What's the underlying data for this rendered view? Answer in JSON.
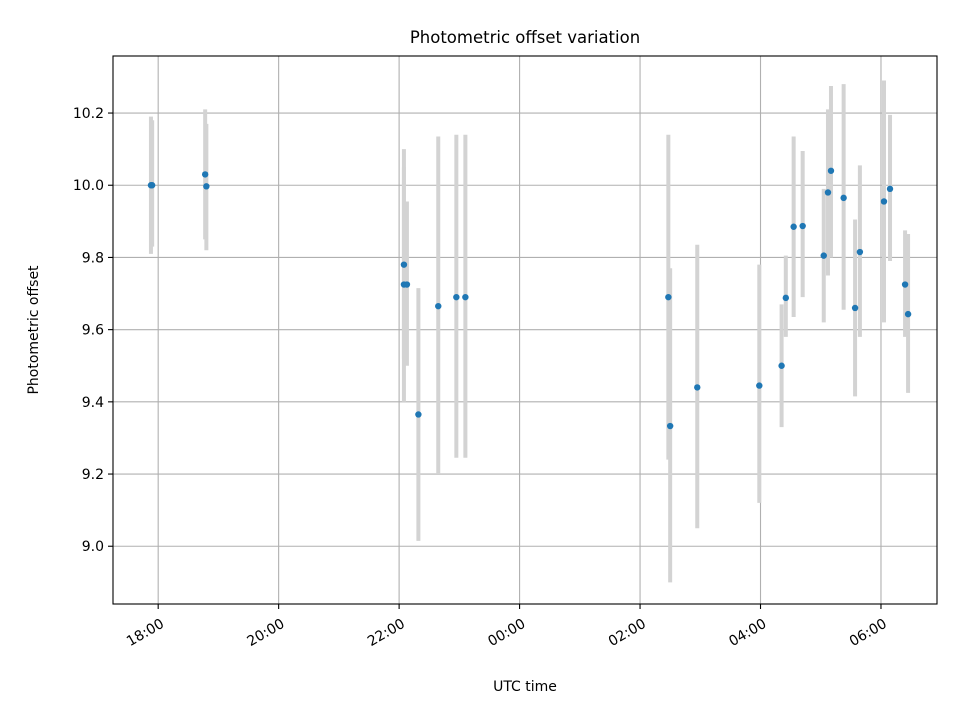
{
  "chart_data": {
    "type": "scatter",
    "title": "Photometric offset variation",
    "xlabel": "UTC time",
    "ylabel": "Photometric offset",
    "grid": true,
    "x_unit": "hours since 18:00",
    "xlim": [
      -0.75,
      12.93
    ],
    "ylim": [
      8.84,
      10.358
    ],
    "x_ticks": [
      {
        "value": 0,
        "label": "18:00"
      },
      {
        "value": 2,
        "label": "20:00"
      },
      {
        "value": 4,
        "label": "22:00"
      },
      {
        "value": 6,
        "label": "00:00"
      },
      {
        "value": 8,
        "label": "02:00"
      },
      {
        "value": 10,
        "label": "04:00"
      },
      {
        "value": 12,
        "label": "06:00"
      }
    ],
    "y_ticks": [
      {
        "value": 9.0,
        "label": "9.0"
      },
      {
        "value": 9.2,
        "label": "9.2"
      },
      {
        "value": 9.4,
        "label": "9.4"
      },
      {
        "value": 9.6,
        "label": "9.6"
      },
      {
        "value": 9.8,
        "label": "9.8"
      },
      {
        "value": 10.0,
        "label": "10.0"
      },
      {
        "value": 10.2,
        "label": "10.2"
      }
    ],
    "marker_color": "#1f77b4",
    "errorbar_color": "#d3d3d3",
    "points": [
      {
        "x": -0.12,
        "y": 10.0,
        "lo": 9.81,
        "hi": 10.19
      },
      {
        "x": -0.1,
        "y": 10.0,
        "lo": 9.83,
        "hi": 10.18
      },
      {
        "x": 0.78,
        "y": 10.03,
        "lo": 9.85,
        "hi": 10.21
      },
      {
        "x": 0.8,
        "y": 9.997,
        "lo": 9.82,
        "hi": 10.17
      },
      {
        "x": 4.08,
        "y": 9.78,
        "lo": 9.52,
        "hi": 10.1
      },
      {
        "x": 4.08,
        "y": 9.725,
        "lo": 9.4,
        "hi": 10.05
      },
      {
        "x": 4.13,
        "y": 9.725,
        "lo": 9.5,
        "hi": 9.955
      },
      {
        "x": 4.32,
        "y": 9.365,
        "lo": 9.015,
        "hi": 9.715
      },
      {
        "x": 4.65,
        "y": 9.665,
        "lo": 9.2,
        "hi": 10.135
      },
      {
        "x": 4.95,
        "y": 9.69,
        "lo": 9.245,
        "hi": 10.14
      },
      {
        "x": 5.1,
        "y": 9.69,
        "lo": 9.245,
        "hi": 10.14
      },
      {
        "x": 8.47,
        "y": 9.69,
        "lo": 9.24,
        "hi": 10.14
      },
      {
        "x": 8.5,
        "y": 9.333,
        "lo": 8.9,
        "hi": 9.77
      },
      {
        "x": 8.95,
        "y": 9.44,
        "lo": 9.05,
        "hi": 9.835
      },
      {
        "x": 9.98,
        "y": 9.445,
        "lo": 9.12,
        "hi": 9.78
      },
      {
        "x": 10.35,
        "y": 9.5,
        "lo": 9.33,
        "hi": 9.67
      },
      {
        "x": 10.42,
        "y": 9.688,
        "lo": 9.58,
        "hi": 9.805
      },
      {
        "x": 10.55,
        "y": 9.885,
        "lo": 9.635,
        "hi": 10.135
      },
      {
        "x": 10.7,
        "y": 9.887,
        "lo": 9.69,
        "hi": 10.095
      },
      {
        "x": 11.05,
        "y": 9.805,
        "lo": 9.62,
        "hi": 9.99
      },
      {
        "x": 11.12,
        "y": 9.98,
        "lo": 9.75,
        "hi": 10.21
      },
      {
        "x": 11.17,
        "y": 10.04,
        "lo": 9.8,
        "hi": 10.275
      },
      {
        "x": 11.38,
        "y": 9.965,
        "lo": 9.655,
        "hi": 10.28
      },
      {
        "x": 11.57,
        "y": 9.66,
        "lo": 9.415,
        "hi": 9.905
      },
      {
        "x": 11.65,
        "y": 9.815,
        "lo": 9.58,
        "hi": 10.055
      },
      {
        "x": 12.05,
        "y": 9.955,
        "lo": 9.62,
        "hi": 10.29
      },
      {
        "x": 12.15,
        "y": 9.99,
        "lo": 9.79,
        "hi": 10.195
      },
      {
        "x": 12.4,
        "y": 9.725,
        "lo": 9.58,
        "hi": 9.875
      },
      {
        "x": 12.45,
        "y": 9.643,
        "lo": 9.425,
        "hi": 9.865
      }
    ]
  }
}
